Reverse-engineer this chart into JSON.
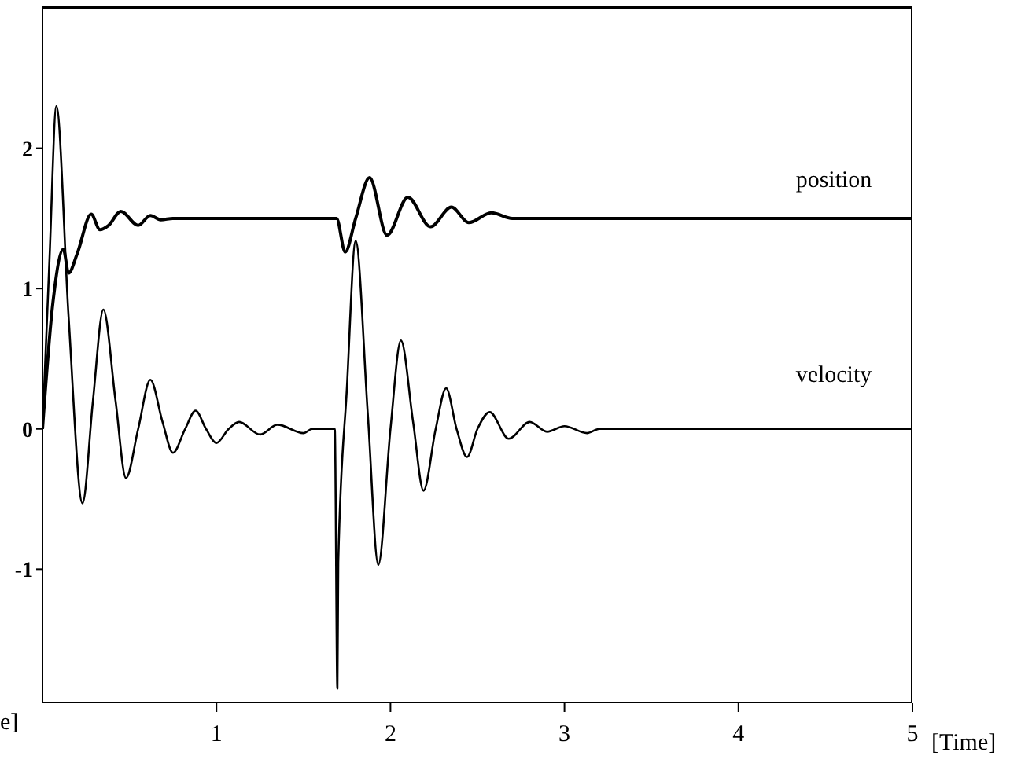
{
  "chart_data": {
    "type": "line",
    "xlabel": "[Time]",
    "annotations": [
      "e]"
    ],
    "xlim": [
      0,
      5
    ],
    "xticks": [
      1,
      2,
      3,
      4,
      5
    ],
    "ylim": [
      -1.95,
      3
    ],
    "yticks": [
      -1,
      0,
      1,
      2
    ],
    "series": [
      {
        "name": "position",
        "color": "#000000",
        "x": [
          0,
          0.06,
          0.12,
          0.15,
          0.2,
          0.28,
          0.33,
          0.38,
          0.45,
          0.55,
          0.62,
          0.68,
          0.75,
          1.69,
          1.74,
          1.8,
          1.88,
          1.98,
          2.1,
          2.23,
          2.35,
          2.45,
          2.58,
          2.7,
          5
        ],
        "values": [
          0,
          0.9,
          1.28,
          1.11,
          1.25,
          1.53,
          1.42,
          1.45,
          1.55,
          1.45,
          1.52,
          1.49,
          1.5,
          1.5,
          1.26,
          1.5,
          1.79,
          1.38,
          1.65,
          1.44,
          1.58,
          1.47,
          1.54,
          1.5,
          1.5
        ]
      },
      {
        "name": "velocity",
        "color": "#000000",
        "x": [
          0,
          0.04,
          0.08,
          0.15,
          0.23,
          0.29,
          0.35,
          0.42,
          0.48,
          0.55,
          0.62,
          0.69,
          0.75,
          0.82,
          0.88,
          0.94,
          1.0,
          1.07,
          1.13,
          1.25,
          1.35,
          1.5,
          1.55,
          1.68,
          1.695,
          1.7,
          1.75,
          1.8,
          1.87,
          1.93,
          2.0,
          2.06,
          2.13,
          2.19,
          2.26,
          2.32,
          2.38,
          2.44,
          2.5,
          2.57,
          2.68,
          2.8,
          2.9,
          3.0,
          3.13,
          3.2,
          5
        ],
        "values": [
          0,
          1.2,
          2.3,
          0.8,
          -0.53,
          0.2,
          0.85,
          0.2,
          -0.35,
          0,
          0.35,
          0.05,
          -0.17,
          0,
          0.13,
          0,
          -0.1,
          0,
          0.05,
          -0.04,
          0.03,
          -0.03,
          0,
          0,
          -1.85,
          -0.95,
          0.3,
          1.34,
          0.1,
          -0.97,
          0,
          0.63,
          0.05,
          -0.44,
          0,
          0.29,
          0,
          -0.2,
          0,
          0.12,
          -0.07,
          0.05,
          -0.02,
          0.02,
          -0.03,
          0,
          0
        ]
      }
    ]
  }
}
